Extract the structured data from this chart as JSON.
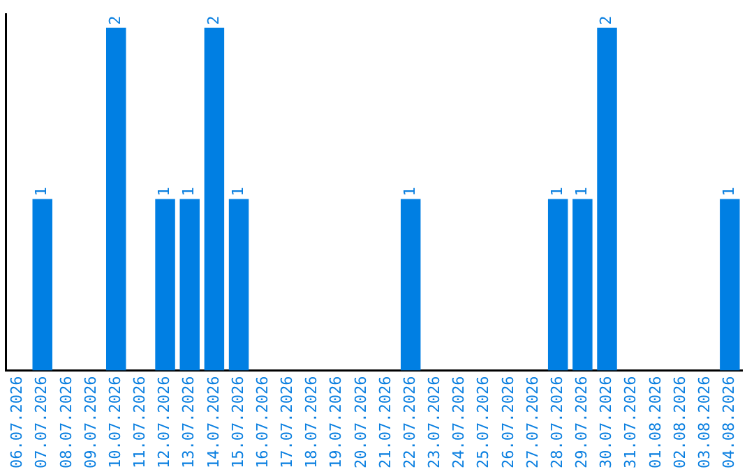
{
  "chart_data": {
    "type": "bar",
    "categories": [
      "06.07.2026",
      "07.07.2026",
      "08.07.2026",
      "09.07.2026",
      "10.07.2026",
      "11.07.2026",
      "12.07.2026",
      "13.07.2026",
      "14.07.2026",
      "15.07.2026",
      "16.07.2026",
      "17.07.2026",
      "18.07.2026",
      "19.07.2026",
      "20.07.2026",
      "21.07.2026",
      "22.07.2026",
      "23.07.2026",
      "24.07.2026",
      "25.07.2026",
      "26.07.2026",
      "27.07.2026",
      "28.07.2026",
      "29.07.2026",
      "30.07.2026",
      "31.07.2026",
      "01.08.2026",
      "02.08.2026",
      "03.08.2026",
      "04.08.2026"
    ],
    "values": [
      0,
      1,
      0,
      0,
      2,
      0,
      1,
      1,
      2,
      1,
      0,
      0,
      0,
      0,
      0,
      0,
      1,
      0,
      0,
      0,
      0,
      0,
      1,
      1,
      2,
      0,
      0,
      0,
      0,
      1
    ],
    "value_labels": [
      null,
      "1",
      null,
      null,
      "2",
      null,
      "1",
      "1",
      "2",
      "1",
      null,
      null,
      null,
      null,
      null,
      null,
      "1",
      null,
      null,
      null,
      null,
      null,
      "1",
      "1",
      "2",
      null,
      null,
      null,
      null,
      "1"
    ],
    "color": "#007fe3",
    "ylim": [
      0,
      2.08
    ],
    "tick_labels": "x",
    "grid": false,
    "legend": false
  }
}
